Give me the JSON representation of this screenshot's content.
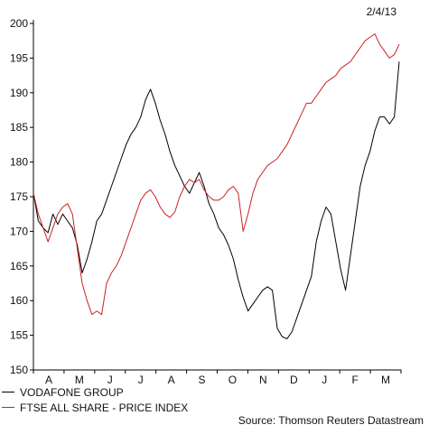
{
  "date_label": "2/4/13",
  "source": "Source: Thomson Reuters Datastream",
  "colors": {
    "vodafone": "#000000",
    "ftse": "#cc2222",
    "axis": "#000000"
  },
  "chart_data": {
    "type": "line",
    "title": "",
    "xlabel": "",
    "ylabel": "",
    "ylim": [
      150,
      200
    ],
    "yticks": [
      150,
      155,
      160,
      165,
      170,
      175,
      180,
      185,
      190,
      195,
      200
    ],
    "x_tick_labels": [
      "A",
      "M",
      "J",
      "J",
      "A",
      "S",
      "O",
      "N",
      "D",
      "J",
      "F",
      "M"
    ],
    "grid": false,
    "legend_position": "bottom-left",
    "series": [
      {
        "name": "VODAFONE GROUP",
        "color": "#000000",
        "values": [
          175.5,
          171.5,
          170.5,
          169.8,
          172.5,
          171.0,
          172.5,
          171.5,
          170.5,
          168.0,
          164.0,
          166.0,
          168.5,
          171.5,
          172.5,
          174.5,
          176.5,
          178.5,
          180.5,
          182.5,
          184.0,
          185.0,
          186.5,
          189.0,
          190.5,
          188.5,
          186.0,
          184.0,
          181.5,
          179.5,
          178.0,
          176.5,
          175.5,
          177.0,
          178.5,
          176.5,
          174.0,
          172.5,
          170.5,
          169.5,
          168.0,
          166.0,
          163.0,
          160.5,
          158.5,
          159.5,
          160.5,
          161.5,
          162.0,
          161.5,
          156.0,
          154.8,
          154.5,
          155.5,
          157.5,
          159.5,
          161.5,
          163.5,
          168.5,
          171.5,
          173.5,
          172.5,
          168.5,
          164.5,
          161.5,
          166.5,
          171.5,
          176.5,
          179.5,
          181.5,
          184.5,
          186.5,
          186.5,
          185.5,
          186.5,
          194.5
        ]
      },
      {
        "name": "FTSE ALL SHARE - PRICE INDEX",
        "color": "#cc2222",
        "values": [
          175.5,
          172.5,
          170.5,
          168.5,
          170.5,
          172.5,
          173.5,
          174.0,
          172.5,
          167.5,
          162.5,
          160.0,
          158.0,
          158.5,
          158.0,
          162.5,
          164.0,
          165.0,
          166.5,
          168.5,
          170.5,
          172.5,
          174.5,
          175.5,
          176.0,
          175.0,
          173.5,
          172.5,
          172.0,
          172.8,
          175.0,
          176.5,
          177.5,
          177.0,
          177.5,
          176.0,
          175.0,
          174.5,
          174.5,
          175.0,
          176.0,
          176.5,
          175.5,
          170.0,
          172.5,
          175.5,
          177.5,
          178.5,
          179.5,
          180.0,
          180.5,
          181.5,
          182.5,
          184.0,
          185.5,
          187.0,
          188.5,
          188.5,
          189.5,
          190.5,
          191.5,
          192.0,
          192.5,
          193.5,
          194.0,
          194.5,
          195.5,
          196.5,
          197.5,
          198.0,
          198.5,
          197.0,
          196.0,
          195.0,
          195.5,
          197.0
        ]
      }
    ]
  }
}
